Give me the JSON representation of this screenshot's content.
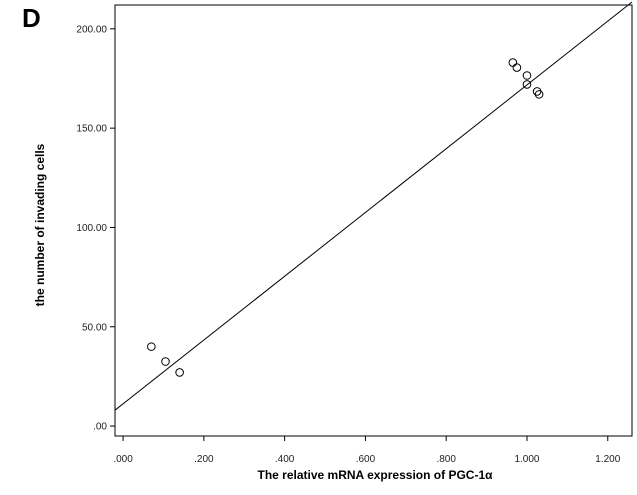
{
  "panel_label": "D",
  "chart_data": {
    "type": "scatter",
    "title": "",
    "xlabel": "The relative mRNA expression of PGC-1α",
    "ylabel": "the number of invading cells",
    "xlim": [
      -0.02,
      1.26
    ],
    "ylim": [
      -5,
      212
    ],
    "x_ticks": [
      0,
      0.2,
      0.4,
      0.6,
      0.8,
      1.0,
      1.2
    ],
    "x_tick_labels": [
      ".000",
      ".200",
      ".400",
      ".600",
      ".800",
      "1.000",
      "1.200"
    ],
    "y_ticks": [
      0,
      50,
      100,
      150,
      200
    ],
    "y_tick_labels": [
      ".00",
      "50.00",
      "100.00",
      "150.00",
      "200.00"
    ],
    "grid": false,
    "legend": "none",
    "marker": "open-circle",
    "points": [
      {
        "x": 0.07,
        "y": 40
      },
      {
        "x": 0.105,
        "y": 32.5
      },
      {
        "x": 0.14,
        "y": 27
      },
      {
        "x": 0.965,
        "y": 183
      },
      {
        "x": 0.975,
        "y": 180.5
      },
      {
        "x": 1.0,
        "y": 176.5
      },
      {
        "x": 1.0,
        "y": 172
      },
      {
        "x": 1.025,
        "y": 168.5
      },
      {
        "x": 1.03,
        "y": 167
      }
    ],
    "fit_line": {
      "x": [
        -0.02,
        1.26
      ],
      "y": [
        8,
        213.5
      ]
    },
    "colors": {
      "marker": "#000000",
      "line": "#000000",
      "axes": "#000000"
    }
  }
}
